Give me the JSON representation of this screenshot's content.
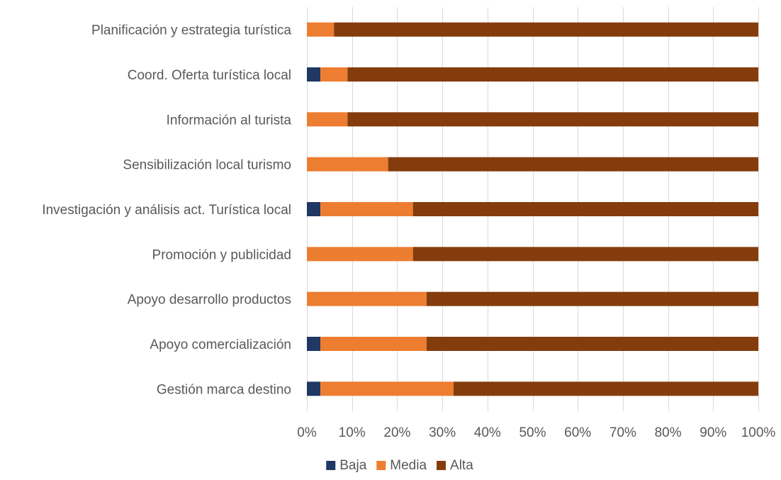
{
  "chart_data": {
    "type": "bar",
    "orientation": "horizontal",
    "stacked": "percent",
    "categories": [
      "Planificación y estrategia turística",
      "Coord. Oferta turística local",
      "Información al turista",
      "Sensibilización local turismo",
      "Investigación y análisis act. Turística local",
      "Promoción y publicidad",
      "Apoyo desarrollo productos",
      "Apoyo comercialización",
      "Gestión marca destino"
    ],
    "series": [
      {
        "name": "Baja",
        "color": "#1f3864",
        "values": [
          0,
          3,
          0,
          0,
          3,
          0,
          0,
          3,
          3
        ]
      },
      {
        "name": "Media",
        "color": "#ed7d31",
        "values": [
          6,
          6,
          9,
          18,
          20.5,
          23.5,
          26.5,
          23.5,
          29.5
        ]
      },
      {
        "name": "Alta",
        "color": "#843c0c",
        "values": [
          94,
          91,
          91,
          82,
          76.5,
          76.5,
          73.5,
          73.5,
          67.5
        ]
      }
    ],
    "xaxis": {
      "ticks": [
        "0%",
        "10%",
        "20%",
        "30%",
        "40%",
        "50%",
        "60%",
        "70%",
        "80%",
        "90%",
        "100%"
      ],
      "range": [
        0,
        100
      ]
    },
    "grid": true,
    "legend_position": "bottom"
  }
}
